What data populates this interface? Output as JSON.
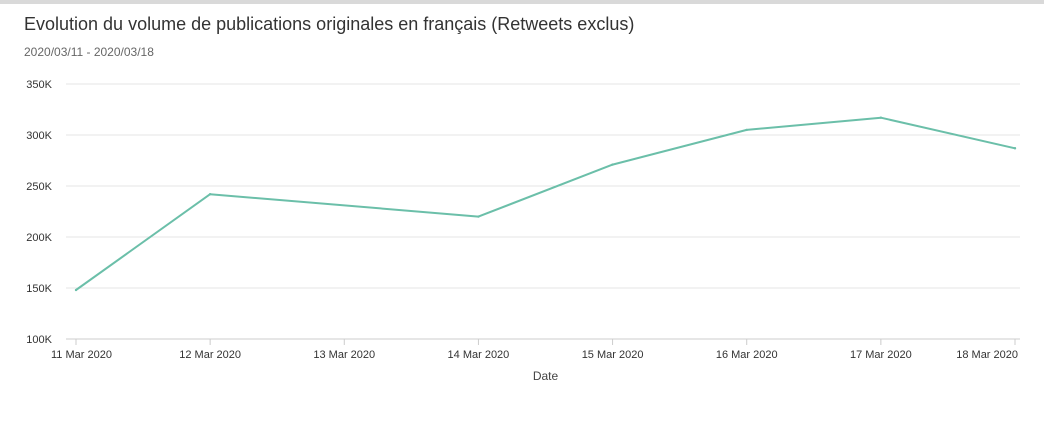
{
  "title": "Evolution du volume de publications originales en français (Retweets exclus)",
  "subtitle": "2020/03/11 - 2020/03/18",
  "colors": {
    "line": "#6bbfa9",
    "grid": "#e6e6e6",
    "axis": "#cccccc",
    "top_rule": "#d9d9d9"
  },
  "chart_data": {
    "type": "line",
    "title": "Evolution du volume de publications originales en français (Retweets exclus)",
    "subtitle": "2020/03/11 - 2020/03/18",
    "xlabel": "Date",
    "ylabel": "",
    "x_tick_labels": [
      "11 Mar 2020",
      "12 Mar 2020",
      "13 Mar 2020",
      "14 Mar 2020",
      "15 Mar 2020",
      "16 Mar 2020",
      "17 Mar 2020",
      "18 Mar 2020"
    ],
    "y_tick_labels": [
      "100K",
      "150K",
      "200K",
      "250K",
      "300K",
      "350K"
    ],
    "y_ticks": [
      100000,
      150000,
      200000,
      250000,
      300000,
      350000
    ],
    "ylim": [
      100000,
      350000
    ],
    "xlim": [
      "2020-03-11",
      "2020-03-18"
    ],
    "grid": true,
    "legend": "none",
    "series": [
      {
        "color": "#6bbfa9",
        "points": [
          {
            "x": "2020-03-11",
            "y": 148000
          },
          {
            "x": "2020-03-12",
            "y": 242000
          },
          {
            "x": "2020-03-14",
            "y": 220000
          },
          {
            "x": "2020-03-15",
            "y": 271000
          },
          {
            "x": "2020-03-16",
            "y": 305000
          },
          {
            "x": "2020-03-17",
            "y": 317000
          },
          {
            "x": "2020-03-18",
            "y": 287000
          }
        ]
      }
    ]
  }
}
